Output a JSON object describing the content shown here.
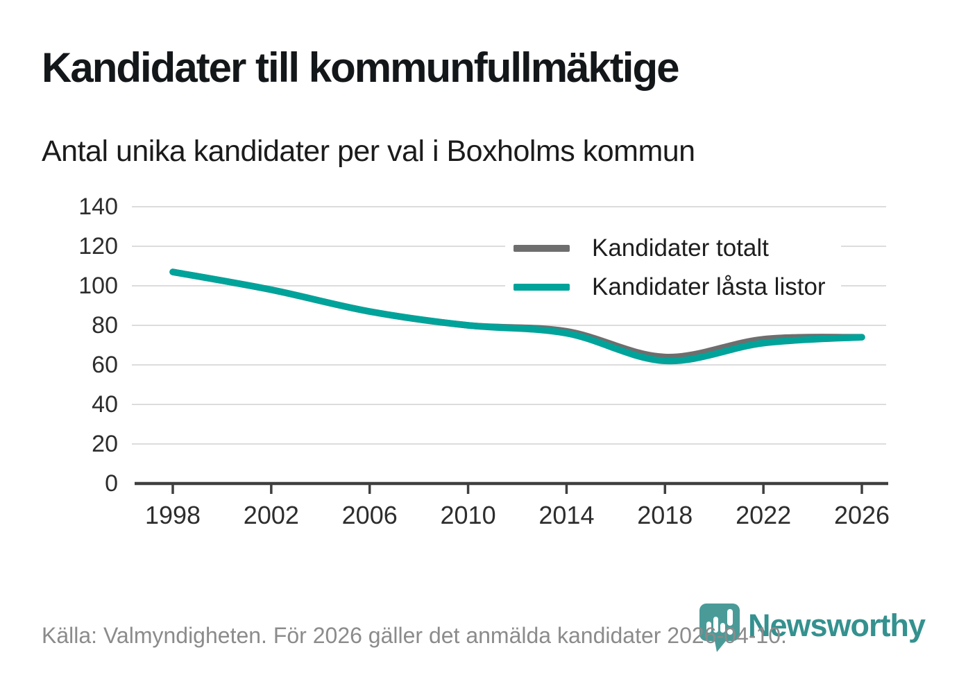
{
  "header": {
    "title": "Kandidater till kommunfullmäktige",
    "subtitle": "Antal unika kandidater per val i Boxholms kommun"
  },
  "footer": {
    "source": "Källa: Valmyndigheten. För 2026 gäller det anmälda kandidater 2026-04-10.",
    "brand": "Newsworthy"
  },
  "colors": {
    "series_total": "#6e6e6e",
    "series_locked": "#00a39a",
    "grid": "#dcdcdc",
    "axis": "#3f3f3f",
    "tick_text": "#2d2d2d",
    "footer_text": "#8b8b8b",
    "brand_teal": "#34918f"
  },
  "chart_data": {
    "type": "line",
    "title": "Kandidater till kommunfullmäktige",
    "subtitle": "Antal unika kandidater per val i Boxholms kommun",
    "x": [
      1998,
      2002,
      2006,
      2010,
      2014,
      2018,
      2022,
      2026
    ],
    "series": [
      {
        "name": "Kandidater totalt",
        "color": "#6e6e6e",
        "values": [
          107,
          98,
          87,
          80,
          77,
          64,
          73,
          74
        ]
      },
      {
        "name": "Kandidater låsta listor",
        "color": "#00a39a",
        "values": [
          107,
          98,
          87,
          80,
          76,
          62,
          71,
          74
        ]
      }
    ],
    "xlabel": "",
    "ylabel": "",
    "ylim": [
      0,
      140
    ],
    "yticks": [
      0,
      20,
      40,
      60,
      80,
      100,
      120,
      140
    ],
    "grid": true,
    "legend_position": "top-right-inside"
  }
}
